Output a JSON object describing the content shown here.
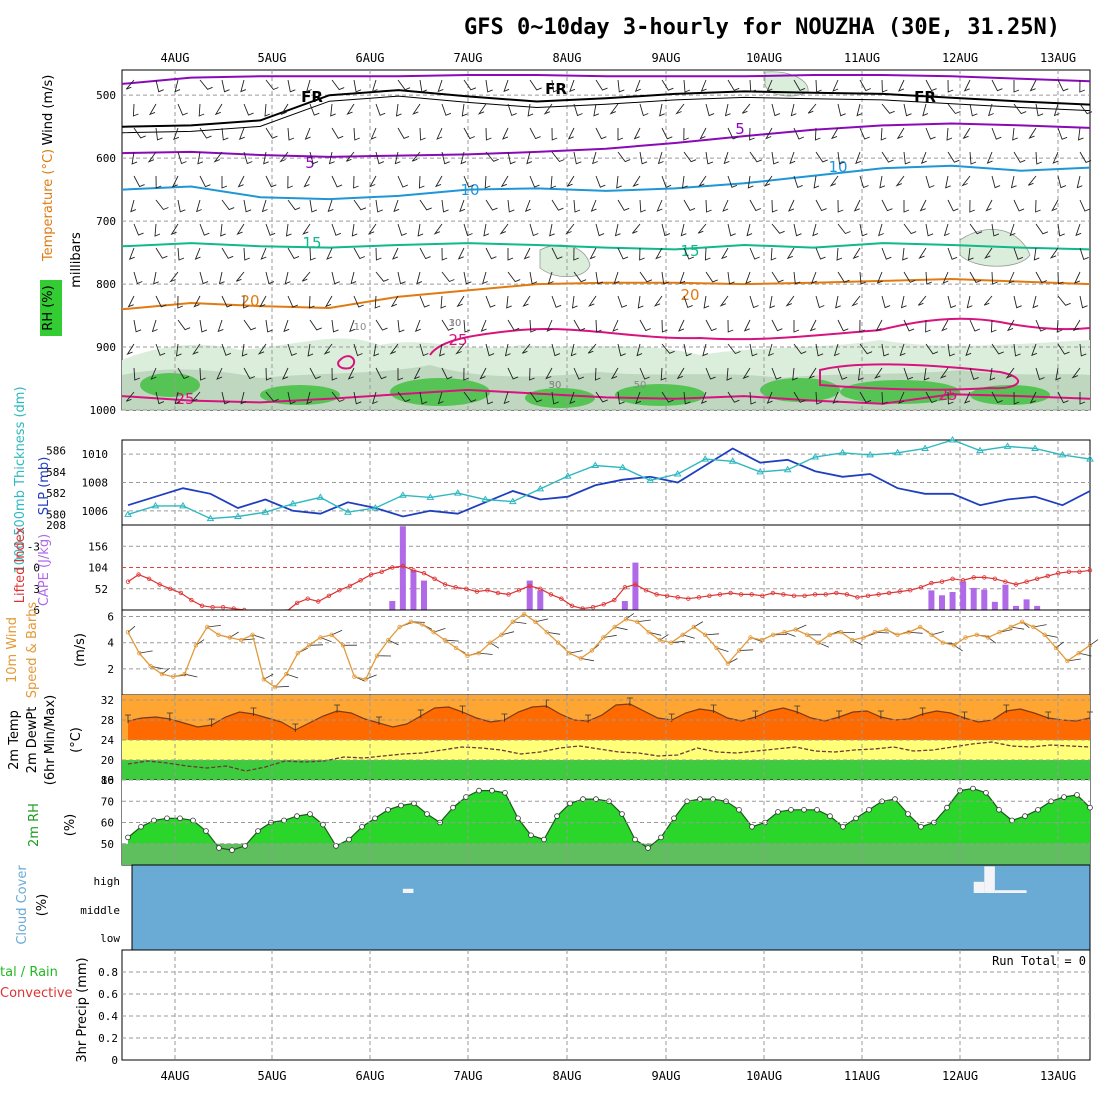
{
  "title": "GFS 0~10day 3-hourly for NOUZHA (30E, 31.25N)",
  "colors": {
    "grid": "#9a9a9a",
    "rh_light": "#dbeedb",
    "rh_mid": "#bfd6bf",
    "rh_dark": "#93c193",
    "rh_green": "#55c455",
    "t5": "#8a0ab8",
    "t10": "#1f96d6",
    "t15": "#10b88a",
    "t20": "#e07b12",
    "t25": "#d8137f",
    "freezing": "#000000",
    "slp": "#1f3fbf",
    "thickness": "#2fb8c0",
    "li": "#dd3333",
    "cape": "#b06ae8",
    "wind10": "#e39a3a",
    "temp_max": "#ff6a00",
    "temp_band1": "#ffa532",
    "temp_band2": "#ffff78",
    "temp_band3": "#3dcc3d",
    "rh_fill1": "#2bd62b",
    "rh_fill2": "#6fd96f",
    "rh_fill3": "#1f9d1f",
    "cloud": "#6aabd6"
  },
  "chart_data": [
    {
      "panel": "upper-air",
      "type": "contour",
      "title": "GFS 0~10day 3-hourly for NOUZHA (30E, 31.25N)",
      "x_dates": [
        "4AUG",
        "5AUG",
        "6AUG",
        "7AUG",
        "8AUG",
        "9AUG",
        "10AUG",
        "11AUG",
        "12AUG",
        "13AUG"
      ],
      "ylabel": "millibars",
      "y_ticks": [
        500,
        600,
        700,
        800,
        900,
        1000
      ],
      "ylim": [
        460,
        1000
      ],
      "legend_labels": {
        "wind": "Wind (m/s)",
        "temperature": "Temperature (°C)",
        "rh": "RH (%)"
      },
      "isotherm_labels": [
        {
          "label": "5",
          "level_series": "t5"
        },
        {
          "label": "10",
          "level_series": "t10"
        },
        {
          "label": "15",
          "level_series": "t15"
        },
        {
          "label": "20",
          "level_series": "t20"
        },
        {
          "label": "25",
          "level_series": "t25"
        },
        {
          "label": "FR",
          "level_series": "fr"
        }
      ],
      "rh_contour_labels": [
        "10",
        "30",
        "50"
      ],
      "series": [
        {
          "name": "fr",
          "pressure": [
            550,
            548,
            540,
            500,
            492,
            502,
            510,
            505,
            498,
            494,
            496,
            498,
            504,
            510,
            515
          ]
        },
        {
          "name": "t5_upper",
          "pressure": [
            482,
            472,
            470,
            470,
            470,
            468,
            468,
            470,
            470,
            470,
            468,
            468,
            470,
            474,
            478
          ]
        },
        {
          "name": "t5",
          "pressure": [
            592,
            590,
            595,
            598,
            596,
            594,
            590,
            585,
            576,
            565,
            555,
            548,
            545,
            548,
            552
          ]
        },
        {
          "name": "t10",
          "pressure": [
            650,
            645,
            662,
            665,
            660,
            650,
            648,
            652,
            648,
            640,
            628,
            616,
            612,
            620,
            615
          ]
        },
        {
          "name": "t15",
          "pressure": [
            740,
            735,
            740,
            742,
            738,
            735,
            738,
            742,
            745,
            738,
            742,
            735,
            738,
            742,
            745
          ]
        },
        {
          "name": "t20",
          "pressure": [
            840,
            830,
            835,
            838,
            820,
            810,
            800,
            798,
            798,
            800,
            798,
            795,
            792,
            796,
            800
          ]
        },
        {
          "name": "t25_lower",
          "pressure": [
            978,
            985,
            988,
            982,
            975,
            968,
            974,
            980,
            982,
            978,
            985,
            990,
            975,
            978,
            982
          ]
        }
      ]
    },
    {
      "panel": "slp-thickness",
      "type": "line",
      "ylabel_left": "1000-500mb Thickness (dm)",
      "ylabel_right": "SLP (mb)",
      "y_ticks_left": [
        580,
        582,
        584,
        586
      ],
      "y_ticks_right": [
        1006,
        1008,
        1010
      ],
      "ylim_right": [
        1005.0,
        1011.0
      ],
      "ylim_left": [
        579.0,
        587.0
      ],
      "bottom_label": "208",
      "series": [
        {
          "name": "SLP",
          "values": [
            1006.4,
            1007.0,
            1007.6,
            1007.2,
            1006.2,
            1006.8,
            1006.0,
            1005.8,
            1006.6,
            1006.2,
            1005.6,
            1006.0,
            1005.8,
            1006.6,
            1007.4,
            1006.8,
            1007.0,
            1007.8,
            1008.2,
            1008.4,
            1008.0,
            1009.2,
            1010.4,
            1009.4,
            1009.6,
            1008.8,
            1008.4,
            1008.6,
            1007.6,
            1007.2,
            1007.2,
            1006.4,
            1006.8,
            1007.0,
            1006.4,
            1007.4
          ]
        },
        {
          "name": "Thickness",
          "values": [
            580.0,
            580.8,
            580.8,
            579.6,
            579.8,
            580.2,
            581.0,
            581.6,
            580.2,
            580.6,
            581.8,
            581.6,
            582.0,
            581.4,
            581.2,
            582.4,
            583.6,
            584.6,
            584.4,
            583.2,
            583.8,
            585.2,
            585.0,
            584.0,
            584.2,
            585.4,
            585.8,
            585.6,
            585.8,
            586.2,
            587.0,
            586.0,
            586.4,
            586.2,
            585.6,
            585.2
          ]
        }
      ]
    },
    {
      "panel": "instability",
      "type": "bar+line",
      "ylabel_left": "Lifted Index",
      "ylabel_right": "CAPE (J/kg)",
      "y_ticks_left": [
        "-3",
        "0",
        "3",
        "6"
      ],
      "y_ticks_right": [
        52,
        104,
        156,
        208
      ],
      "cape_ylim": [
        0,
        208
      ],
      "li_ylim": [
        -6,
        6
      ],
      "cape_bars": [
        {
          "x_index": 25,
          "value": 22
        },
        {
          "x_index": 26,
          "value": 205
        },
        {
          "x_index": 27,
          "value": 98
        },
        {
          "x_index": 28,
          "value": 72
        },
        {
          "x_index": 38,
          "value": 72
        },
        {
          "x_index": 39,
          "value": 48
        },
        {
          "x_index": 47,
          "value": 22
        },
        {
          "x_index": 48,
          "value": 116
        },
        {
          "x_index": 76,
          "value": 48
        },
        {
          "x_index": 77,
          "value": 36
        },
        {
          "x_index": 78,
          "value": 44
        },
        {
          "x_index": 79,
          "value": 70
        },
        {
          "x_index": 80,
          "value": 54
        },
        {
          "x_index": 81,
          "value": 50
        },
        {
          "x_index": 82,
          "value": 20
        },
        {
          "x_index": 83,
          "value": 62
        },
        {
          "x_index": 84,
          "value": 10
        },
        {
          "x_index": 85,
          "value": 26
        },
        {
          "x_index": 86,
          "value": 10
        }
      ],
      "lifted_index": [
        2.0,
        1.0,
        1.6,
        2.4,
        3.0,
        3.6,
        4.6,
        5.4,
        5.6,
        5.6,
        5.8,
        6.0,
        6.4,
        6.8,
        6.6,
        6.2,
        5.0,
        4.4,
        4.8,
        4.0,
        3.2,
        2.6,
        1.8,
        1.0,
        0.6,
        0.0,
        -0.2,
        0.4,
        0.8,
        1.6,
        2.4,
        2.8,
        3.0,
        3.4,
        3.2,
        3.6,
        3.8,
        3.2,
        2.6,
        3.0,
        3.8,
        4.4,
        5.4,
        5.8,
        5.6,
        5.2,
        4.6,
        2.8,
        2.4,
        3.2,
        3.8,
        4.0,
        4.2,
        4.4,
        4.2,
        4.0,
        3.8,
        3.6,
        3.8,
        3.8,
        4.0,
        3.6,
        3.8,
        4.0,
        4.0,
        3.8,
        3.8,
        3.6,
        3.8,
        4.2,
        4.0,
        3.8,
        3.6,
        3.4,
        3.2,
        2.8,
        2.2,
        2.0,
        1.6,
        1.8,
        1.4,
        1.4,
        1.6,
        2.0,
        2.4,
        2.0,
        1.6,
        1.2,
        0.8,
        0.6,
        0.6,
        0.4
      ]
    },
    {
      "panel": "wind10m",
      "type": "line",
      "ylabel": "10m Wind Speed & Barbs (m/s)",
      "y_ticks": [
        2,
        4,
        6
      ],
      "ylim": [
        0,
        6.5
      ],
      "values": [
        4.8,
        3.2,
        2.2,
        1.6,
        1.4,
        1.6,
        3.8,
        5.2,
        4.6,
        4.4,
        4.2,
        4.6,
        1.2,
        0.6,
        1.6,
        3.2,
        3.8,
        4.4,
        4.6,
        3.8,
        1.4,
        1.2,
        3.0,
        4.2,
        5.2,
        5.6,
        5.4,
        4.8,
        4.2,
        3.6,
        3.0,
        3.2,
        4.0,
        4.6,
        5.6,
        6.2,
        5.6,
        4.8,
        4.0,
        3.2,
        2.8,
        3.4,
        4.4,
        5.2,
        5.8,
        5.6,
        4.8,
        4.2,
        4.0,
        4.6,
        5.2,
        4.6,
        3.6,
        2.4,
        3.4,
        4.4,
        4.2,
        4.6,
        4.8,
        5.0,
        4.6,
        4.0,
        4.6,
        4.8,
        4.2,
        4.4,
        4.8,
        5.0,
        4.6,
        4.8,
        5.2,
        4.6,
        4.0,
        3.8,
        4.4,
        4.6,
        4.4,
        4.8,
        5.2,
        5.6,
        5.2,
        4.6,
        3.6,
        2.6,
        3.2,
        3.8
      ]
    },
    {
      "panel": "temperature",
      "type": "area",
      "ylabel": "2m Temp 2m DewPt (6hr Min/Max) (°C)",
      "y_ticks": [
        20,
        24,
        28,
        32
      ],
      "ylim": [
        16,
        33
      ],
      "temp": [
        27.8,
        28.4,
        28.6,
        28.2,
        27.4,
        26.6,
        27.0,
        28.6,
        29.6,
        29.2,
        28.4,
        27.6,
        26.0,
        27.4,
        28.8,
        29.8,
        29.4,
        28.2,
        27.4,
        26.6,
        27.2,
        28.8,
        30.4,
        30.6,
        29.6,
        28.4,
        27.6,
        28.0,
        29.6,
        30.6,
        30.8,
        29.2,
        28.0,
        27.8,
        29.0,
        31.0,
        31.2,
        29.8,
        28.4,
        28.0,
        29.4,
        30.2,
        29.8,
        28.4,
        27.8,
        28.6,
        29.8,
        30.4,
        29.6,
        28.4,
        27.8,
        28.6,
        29.6,
        29.8,
        28.6,
        28.0,
        28.2,
        29.2,
        29.8,
        29.4,
        28.4,
        27.6,
        28.0,
        29.8,
        30.2,
        29.4,
        28.4,
        28.0,
        27.8,
        28.4
      ],
      "dewpoint": [
        19.2,
        19.8,
        19.4,
        18.8,
        18.4,
        18.8,
        17.8,
        18.6,
        19.8,
        19.6,
        19.8,
        20.6,
        20.4,
        20.8,
        21.2,
        21.4,
        22.0,
        22.6,
        22.4,
        22.0,
        21.2,
        21.6,
        22.4,
        22.8,
        22.2,
        21.6,
        21.4,
        20.8,
        21.0,
        22.4,
        21.6,
        21.4,
        21.8,
        22.2,
        22.6,
        21.8,
        21.6,
        22.0,
        22.2,
        22.6,
        21.8,
        22.0,
        22.6,
        23.2,
        23.6,
        22.8,
        22.6,
        23.0,
        22.8,
        22.6
      ]
    },
    {
      "panel": "rh2m",
      "type": "area",
      "ylabel": "2m RH (%)",
      "y_ticks": [
        50,
        60,
        70,
        80
      ],
      "ylim": [
        40,
        80
      ],
      "values": [
        53,
        58,
        61,
        62,
        62,
        61,
        56,
        48,
        47,
        49,
        56,
        60,
        61,
        63,
        64,
        59,
        49,
        52,
        58,
        62,
        66,
        68,
        69,
        64,
        60,
        67,
        72,
        75,
        75,
        74,
        62,
        54,
        52,
        63,
        69,
        71,
        71,
        70,
        64,
        52,
        48,
        53,
        62,
        70,
        71,
        71,
        70,
        66,
        58,
        60,
        65,
        66,
        66,
        66,
        63,
        58,
        62,
        66,
        70,
        71,
        64,
        58,
        60,
        67,
        75,
        76,
        74,
        66,
        61,
        63,
        66,
        70,
        72,
        73,
        67
      ]
    },
    {
      "panel": "cloud",
      "type": "heatmap",
      "ylabel": "Cloud Cover (%)",
      "row_labels": [
        "high",
        "middle",
        "low"
      ],
      "high_cloud_blocks": [
        {
          "x_index": 26,
          "width": 1,
          "value": 15
        },
        {
          "x_index": 80,
          "width": 1,
          "value": 40
        },
        {
          "x_index": 81,
          "width": 1,
          "value": 95
        },
        {
          "x_index": 82,
          "width": 3,
          "value": 10
        }
      ]
    },
    {
      "panel": "precip",
      "type": "bar",
      "ylabel": "3hr Precip (mm)",
      "legend": [
        "Total / Rain",
        "Convective"
      ],
      "y_ticks": [
        0,
        0.2,
        0.4,
        0.6,
        0.8
      ],
      "ylim": [
        0,
        1
      ],
      "values": [],
      "note": "Run Total = 0"
    }
  ],
  "side_labels": {
    "wind": "Wind (m/s)",
    "temperature": "Temperature (°C)",
    "rh": "RH (%)",
    "millibars": "millibars",
    "thickness": "1000-500mb Thickness (dm)",
    "slp": "SLP (mb)",
    "li": "Lifted Index",
    "cape": "CAPE (J/kg)",
    "wind10_1": "10m Wind",
    "wind10_2": "Speed & Barbs",
    "wind10_3": "(m/s)",
    "temp_1": "2m Temp",
    "temp_2": "2m DewPt",
    "temp_3": "(6hr Min/Max)",
    "temp_4": "(°C)",
    "rh2m_1": "2m RH",
    "rh2m_2": "(%)",
    "cloud_1": "Cloud Cover",
    "cloud_2": "(%)",
    "precip_1": "tal / Rain",
    "precip_2": "Convective",
    "precip_3": "3hr Precip (mm)"
  }
}
